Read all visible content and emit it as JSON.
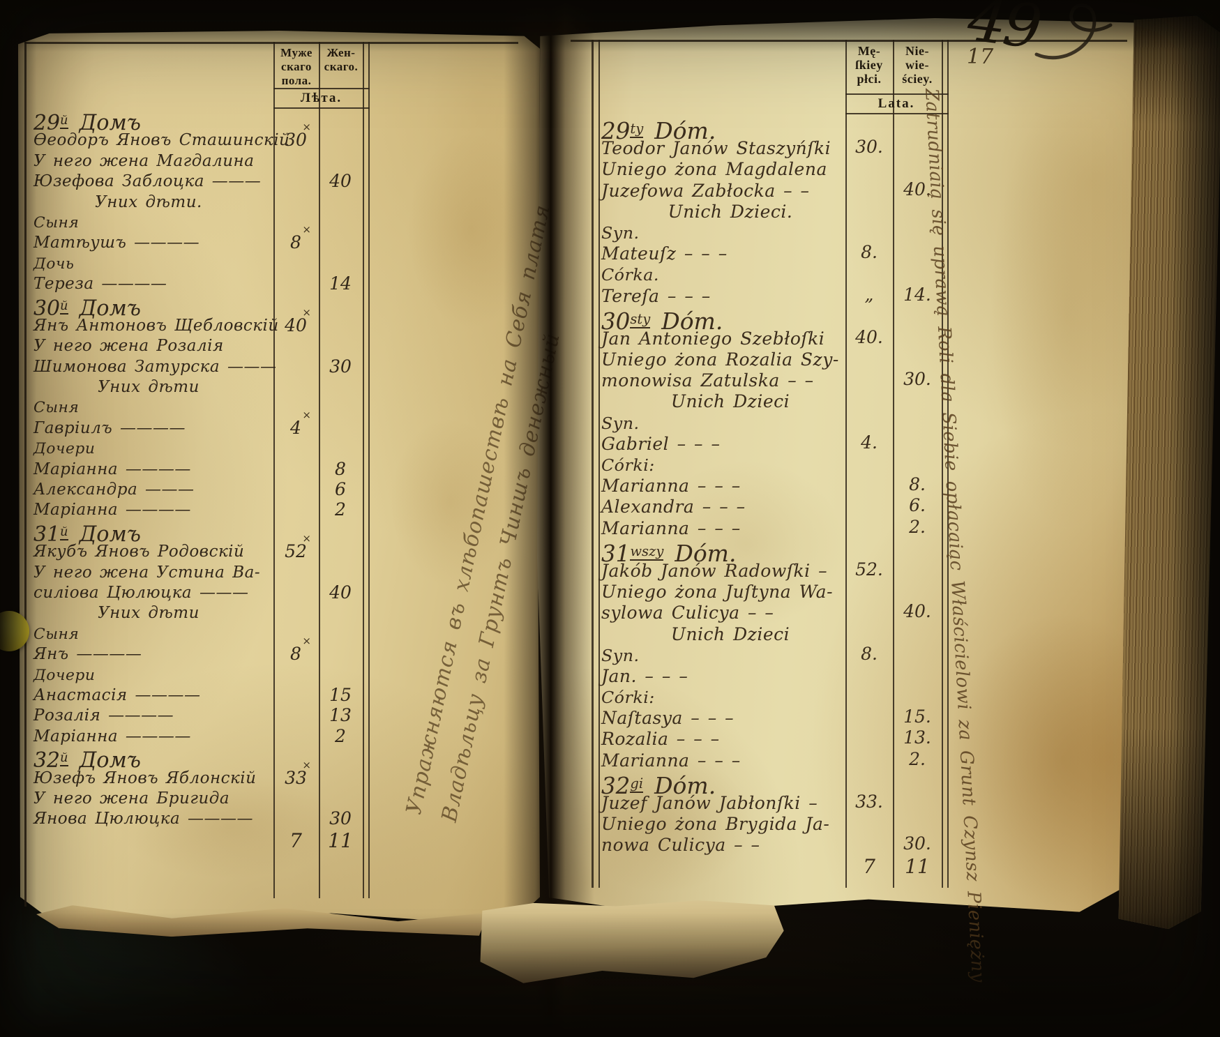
{
  "photo": {
    "folio_number": "17",
    "corner_mark": "49"
  },
  "palette": {
    "paper_left": "#decb96",
    "paper_right": "#e4d8a8",
    "ink": "#32271a",
    "print_ink": "#241c10",
    "sticker_yellow": "#efe23e"
  },
  "marks": {
    "cross": "×"
  },
  "left_page": {
    "header": {
      "male_col": [
        "Муже",
        "скаго",
        "пола."
      ],
      "female_col": [
        "Жен-",
        "скаго."
      ],
      "years": "Лѣта."
    },
    "gutter_note_lines": [
      "Упражняются въ хлѣбопашествѣ на Себя платя",
      "Владѣльцу за Грунтъ Чиншъ денежный"
    ],
    "entries": [
      {
        "kind": "house",
        "num": "29",
        "suffix": "й",
        "word": "Домъ"
      },
      {
        "kind": "person",
        "text": "Ѳеодоръ Яновъ Сташинскій",
        "male": "30",
        "mark": true
      },
      {
        "kind": "person",
        "text": "У него жена Магдалина"
      },
      {
        "kind": "person",
        "text": "Юзефова Заблоцка ———",
        "female": "40"
      },
      {
        "kind": "center",
        "text": "Уних дѣти."
      },
      {
        "kind": "label",
        "text": "Сыня"
      },
      {
        "kind": "person",
        "text": "Матѣушъ ————",
        "male": "8",
        "mark": true
      },
      {
        "kind": "label",
        "text": "Дочь"
      },
      {
        "kind": "person",
        "text": "Тереза ————",
        "female": "14"
      },
      {
        "kind": "house",
        "num": "30",
        "suffix": "й",
        "word": "Домъ"
      },
      {
        "kind": "person",
        "text": "Янъ Антоновъ Щебловскій",
        "male": "40",
        "mark": true
      },
      {
        "kind": "person",
        "text": "У него жена Розалія"
      },
      {
        "kind": "person",
        "text": "Шимонова Затурска ———",
        "female": "30"
      },
      {
        "kind": "center",
        "text": "Уних дѣти"
      },
      {
        "kind": "label",
        "text": "Сыня"
      },
      {
        "kind": "person",
        "text": "Гавріилъ ————",
        "male": "4",
        "mark": true
      },
      {
        "kind": "label",
        "text": "Дочери"
      },
      {
        "kind": "person",
        "text": "Маріанна ————",
        "female": "8"
      },
      {
        "kind": "person",
        "text": "Александра ———",
        "female": "6"
      },
      {
        "kind": "person",
        "text": "Маріанна ————",
        "female": "2"
      },
      {
        "kind": "house",
        "num": "31",
        "suffix": "й",
        "word": "Домъ"
      },
      {
        "kind": "person",
        "text": "Якубъ Яновъ Родовскій",
        "male": "52",
        "mark": true
      },
      {
        "kind": "person",
        "text": "У него жена Устина Ва-"
      },
      {
        "kind": "person",
        "text": "силіова Цюлюцка ———",
        "female": "40"
      },
      {
        "kind": "center",
        "text": "Уних дѣти"
      },
      {
        "kind": "label",
        "text": "Сыня"
      },
      {
        "kind": "person",
        "text": "Янъ ————",
        "male": "8",
        "mark": true
      },
      {
        "kind": "label",
        "text": "Дочери"
      },
      {
        "kind": "person",
        "text": "Анастасія ————",
        "female": "15"
      },
      {
        "kind": "person",
        "text": "Розалія ————",
        "female": "13"
      },
      {
        "kind": "person",
        "text": "Маріанна ————",
        "female": "2"
      },
      {
        "kind": "house",
        "num": "32",
        "suffix": "й",
        "word": "Домъ"
      },
      {
        "kind": "person",
        "text": "Юзефъ Яновъ Яблонскій",
        "male": "33",
        "mark": true
      },
      {
        "kind": "person",
        "text": "У него жена Бригида"
      },
      {
        "kind": "person",
        "text": "Янова Цюлюцка ————",
        "female": "30"
      },
      {
        "kind": "total",
        "male": "7",
        "female": "11"
      }
    ]
  },
  "right_page": {
    "header": {
      "male_col": [
        "Mę-",
        "ſkiey",
        "płci."
      ],
      "female_col": [
        "Nie-",
        "wie-",
        "ściey."
      ],
      "years": "Lata."
    },
    "margin_note": "Zatrudniaią się uprawą Roli dla Siebie opłacaiąc Właścicielowi za Grunt Czynsz Pieniężny",
    "entries": [
      {
        "kind": "house",
        "num": "29",
        "suffix": "ty",
        "word": "Dóm."
      },
      {
        "kind": "person",
        "text": "Teodor Janów Staszyńſki",
        "male": "30."
      },
      {
        "kind": "person",
        "text": "Uniego żona Magdalena"
      },
      {
        "kind": "person",
        "text": "Juzefowa Zabłocka – –",
        "female": "40."
      },
      {
        "kind": "center",
        "text": "Unich Dzieci."
      },
      {
        "kind": "label",
        "text": "Syn."
      },
      {
        "kind": "person",
        "text": "Mateuſz – – –",
        "male": "8."
      },
      {
        "kind": "label",
        "text": "Córka."
      },
      {
        "kind": "person",
        "text": "Tereſa – – –",
        "male": "„",
        "female": "14."
      },
      {
        "kind": "house",
        "num": "30",
        "suffix": "sty",
        "word": "Dóm."
      },
      {
        "kind": "person",
        "text": "Jan Antoniego Szebłoſki",
        "male": "40."
      },
      {
        "kind": "person",
        "text": "Uniego żona Rozalia Szy-"
      },
      {
        "kind": "person",
        "text": "monowisa Zatulska – –",
        "female": "30."
      },
      {
        "kind": "center",
        "text": "Unich Dzieci"
      },
      {
        "kind": "label",
        "text": "Syn."
      },
      {
        "kind": "person",
        "text": "Gabriel – – –",
        "male": "4."
      },
      {
        "kind": "label",
        "text": "Córki:"
      },
      {
        "kind": "person",
        "text": "Marianna – – –",
        "female": "8."
      },
      {
        "kind": "person",
        "text": "Alexandra – – –",
        "female": "6."
      },
      {
        "kind": "person",
        "text": "Marianna – – –",
        "female": "2."
      },
      {
        "kind": "house",
        "num": "31",
        "suffix": "wszy",
        "word": "Dóm."
      },
      {
        "kind": "person",
        "text": "Jakób Janów Radowſki –",
        "male": "52."
      },
      {
        "kind": "person",
        "text": "Uniego żona Juſtyna Wa-"
      },
      {
        "kind": "person",
        "text": "sylowa Culicya – –",
        "female": "40."
      },
      {
        "kind": "center",
        "text": "Unich Dzieci"
      },
      {
        "kind": "label",
        "text": "Syn.",
        "male": "8."
      },
      {
        "kind": "person",
        "text": "Jan. – – –"
      },
      {
        "kind": "label",
        "text": "Córki:"
      },
      {
        "kind": "person",
        "text": "Naſtasya – – –",
        "female": "15."
      },
      {
        "kind": "person",
        "text": "Rozalia – – –",
        "female": "13."
      },
      {
        "kind": "person",
        "text": "Marianna – – –",
        "female": "2."
      },
      {
        "kind": "house",
        "num": "32",
        "suffix": "gi",
        "word": "Dóm."
      },
      {
        "kind": "person",
        "text": "Juzef Janów Jabłonſki –",
        "male": "33."
      },
      {
        "kind": "person",
        "text": "Uniego żona Brygida Ja-"
      },
      {
        "kind": "person",
        "text": "nowa Culicya – –",
        "female": "30."
      },
      {
        "kind": "total",
        "male": "7",
        "female": "11"
      }
    ]
  }
}
